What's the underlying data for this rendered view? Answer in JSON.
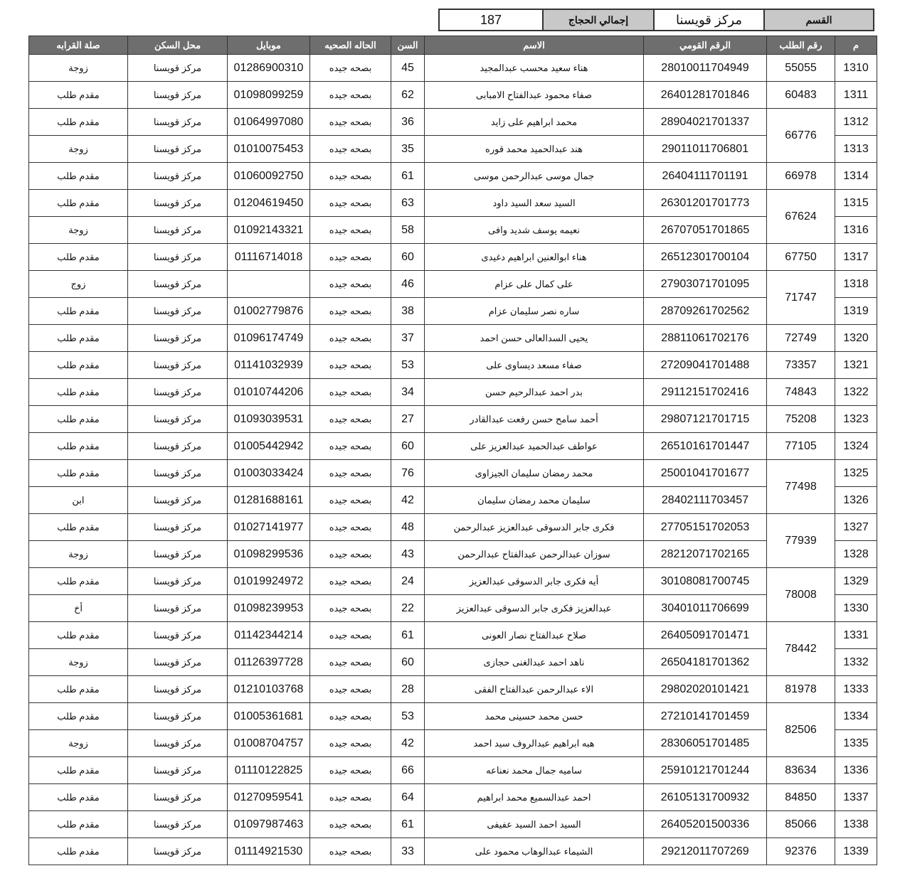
{
  "summary": {
    "section_label": "القسم",
    "section_value": "مركز قويسنا",
    "total_label": "إجمالي الحجاج",
    "total_value": "187"
  },
  "headers": [
    "م",
    "رقم الطلب",
    "الرقم القومي",
    "الاسم",
    "السن",
    "الحاله الصحيه",
    "موبايل",
    "محل السكن",
    "صلة القرابه"
  ],
  "rows": [
    {
      "no": "1310",
      "req": "55055",
      "nid": "28010011704949",
      "name": "هناء سعيد محسب عبدالمجيد",
      "age": "45",
      "health": "بصحه جيده",
      "mobile": "01286900310",
      "residence": "مركز قويسنا",
      "relation": "زوجة"
    },
    {
      "no": "1311",
      "req": "60483",
      "nid": "26401281701846",
      "name": "صفاء محمود عبدالفتاح الامبابى",
      "age": "62",
      "health": "بصحه جيده",
      "mobile": "01098099259",
      "residence": "مركز قويسنا",
      "relation": "مقدم طلب"
    },
    {
      "no": "1312",
      "req": "66776",
      "nid": "28904021701337",
      "name": "محمد ابراهيم على زايد",
      "age": "36",
      "health": "بصحه جيده",
      "mobile": "01064997080",
      "residence": "مركز قويسنا",
      "relation": "مقدم طلب"
    },
    {
      "no": "1313",
      "req": "66776",
      "nid": "29011011706801",
      "name": "هند عبدالحميد محمد قوره",
      "age": "35",
      "health": "بصحه جيده",
      "mobile": "01010075453",
      "residence": "مركز قويسنا",
      "relation": "زوجة"
    },
    {
      "no": "1314",
      "req": "66978",
      "nid": "26404111701191",
      "name": "جمال موسى عبدالرحمن موسى",
      "age": "61",
      "health": "بصحه جيده",
      "mobile": "01060092750",
      "residence": "مركز قويسنا",
      "relation": "مقدم طلب"
    },
    {
      "no": "1315",
      "req": "67624",
      "nid": "26301201701773",
      "name": "السيد سعد السيد داود",
      "age": "63",
      "health": "بصحه جيده",
      "mobile": "01204619450",
      "residence": "مركز قويسنا",
      "relation": "مقدم طلب"
    },
    {
      "no": "1316",
      "req": "67624",
      "nid": "26707051701865",
      "name": "نعيمه يوسف شديد وافى",
      "age": "58",
      "health": "بصحه جيده",
      "mobile": "01092143321",
      "residence": "مركز قويسنا",
      "relation": "زوجة"
    },
    {
      "no": "1317",
      "req": "67750",
      "nid": "26512301700104",
      "name": "هناء ابوالعنين ابراهيم دغيدى",
      "age": "60",
      "health": "بصحه جيده",
      "mobile": "01116714018",
      "residence": "مركز قويسنا",
      "relation": "مقدم طلب"
    },
    {
      "no": "1318",
      "req": "71747",
      "nid": "27903071701095",
      "name": "على كمال على عزام",
      "age": "46",
      "health": "بصحه جيده",
      "mobile": "",
      "residence": "مركز قويسنا",
      "relation": "زوج"
    },
    {
      "no": "1319",
      "req": "71747",
      "nid": "28709261702562",
      "name": "ساره نصر سليمان عزام",
      "age": "38",
      "health": "بصحه جيده",
      "mobile": "01002779876",
      "residence": "مركز قويسنا",
      "relation": "مقدم طلب"
    },
    {
      "no": "1320",
      "req": "72749",
      "nid": "28811061702176",
      "name": "يحيى السدالعالى حسن احمد",
      "age": "37",
      "health": "بصحه جيده",
      "mobile": "01096174749",
      "residence": "مركز قويسنا",
      "relation": "مقدم طلب"
    },
    {
      "no": "1321",
      "req": "73357",
      "nid": "27209041701488",
      "name": "صفاء مسعد ديساوى على",
      "age": "53",
      "health": "بصحه جيده",
      "mobile": "01141032939",
      "residence": "مركز قويسنا",
      "relation": "مقدم طلب"
    },
    {
      "no": "1322",
      "req": "74843",
      "nid": "29112151702416",
      "name": "بدر احمد عبدالرحيم حسن",
      "age": "34",
      "health": "بصحه جيده",
      "mobile": "01010744206",
      "residence": "مركز قويسنا",
      "relation": "مقدم طلب"
    },
    {
      "no": "1323",
      "req": "75208",
      "nid": "29807121701715",
      "name": "أحمد سامح حسن رفعت عبدالقادر",
      "age": "27",
      "health": "بصحه جيده",
      "mobile": "01093039531",
      "residence": "مركز قويسنا",
      "relation": "مقدم طلب"
    },
    {
      "no": "1324",
      "req": "77105",
      "nid": "26510161701447",
      "name": "عواطف عبدالحميد عبدالعزيز على",
      "age": "60",
      "health": "بصحه جيده",
      "mobile": "01005442942",
      "residence": "مركز قويسنا",
      "relation": "مقدم طلب"
    },
    {
      "no": "1325",
      "req": "77498",
      "nid": "25001041701677",
      "name": "محمد رمضان سليمان الجيزاوى",
      "age": "76",
      "health": "بصحه جيده",
      "mobile": "01003033424",
      "residence": "مركز قويسنا",
      "relation": "مقدم طلب"
    },
    {
      "no": "1326",
      "req": "77498",
      "nid": "28402111703457",
      "name": "سليمان محمد رمضان سليمان",
      "age": "42",
      "health": "بصحه جيده",
      "mobile": "01281688161",
      "residence": "مركز قويسنا",
      "relation": "ابن"
    },
    {
      "no": "1327",
      "req": "77939",
      "nid": "27705151702053",
      "name": "فكرى جابر الدسوقى عبدالعزيز عبدالرحمن",
      "age": "48",
      "health": "بصحه جيده",
      "mobile": "01027141977",
      "residence": "مركز قويسنا",
      "relation": "مقدم طلب"
    },
    {
      "no": "1328",
      "req": "77939",
      "nid": "28212071702165",
      "name": "سوزان عبدالرحمن عبدالفتاح عبدالرحمن",
      "age": "43",
      "health": "بصحه جيده",
      "mobile": "01098299536",
      "residence": "مركز قويسنا",
      "relation": "زوجة"
    },
    {
      "no": "1329",
      "req": "78008",
      "nid": "30108081700745",
      "name": "أيه فكرى جابر الدسوقى عبدالعزيز",
      "age": "24",
      "health": "بصحه جيده",
      "mobile": "01019924972",
      "residence": "مركز قويسنا",
      "relation": "مقدم طلب"
    },
    {
      "no": "1330",
      "req": "78008",
      "nid": "30401011706699",
      "name": "عبدالعزيز فكرى جابر الدسوقى عبدالعزيز",
      "age": "22",
      "health": "بصحه جيده",
      "mobile": "01098239953",
      "residence": "مركز قويسنا",
      "relation": "أخ"
    },
    {
      "no": "1331",
      "req": "78442",
      "nid": "26405091701471",
      "name": "صلاح عبدالفتاح نصار العونى",
      "age": "61",
      "health": "بصحه جيده",
      "mobile": "01142344214",
      "residence": "مركز قويسنا",
      "relation": "مقدم طلب"
    },
    {
      "no": "1332",
      "req": "78442",
      "nid": "26504181701362",
      "name": "ناهد احمد عبدالغنى حجازى",
      "age": "60",
      "health": "بصحه جيده",
      "mobile": "01126397728",
      "residence": "مركز قويسنا",
      "relation": "زوجة"
    },
    {
      "no": "1333",
      "req": "81978",
      "nid": "29802020101421",
      "name": "الاء عبدالرحمن عبدالفتاح الفقى",
      "age": "28",
      "health": "بصحه جيده",
      "mobile": "01210103768",
      "residence": "مركز قويسنا",
      "relation": "مقدم طلب"
    },
    {
      "no": "1334",
      "req": "82506",
      "nid": "27210141701459",
      "name": "حسن محمد حسينى محمد",
      "age": "53",
      "health": "بصحه جيده",
      "mobile": "01005361681",
      "residence": "مركز قويسنا",
      "relation": "مقدم طلب"
    },
    {
      "no": "1335",
      "req": "82506",
      "nid": "28306051701485",
      "name": "هبه ابراهيم عبدالروف سيد احمد",
      "age": "42",
      "health": "بصحه جيده",
      "mobile": "01008704757",
      "residence": "مركز قويسنا",
      "relation": "زوجة"
    },
    {
      "no": "1336",
      "req": "83634",
      "nid": "25910121701244",
      "name": "ساميه جمال محمد نعناعه",
      "age": "66",
      "health": "بصحه جيده",
      "mobile": "01110122825",
      "residence": "مركز قويسنا",
      "relation": "مقدم طلب"
    },
    {
      "no": "1337",
      "req": "84850",
      "nid": "26105131700932",
      "name": "احمد عبدالسميع محمد ابراهيم",
      "age": "64",
      "health": "بصحه جيده",
      "mobile": "01270959541",
      "residence": "مركز قويسنا",
      "relation": "مقدم طلب"
    },
    {
      "no": "1338",
      "req": "85066",
      "nid": "26405201500336",
      "name": "السيد احمد السيد عفيفى",
      "age": "61",
      "health": "بصحه جيده",
      "mobile": "01097987463",
      "residence": "مركز قويسنا",
      "relation": "مقدم طلب"
    },
    {
      "no": "1339",
      "req": "92376",
      "nid": "29212011707269",
      "name": "الشيماء عبدالوهاب محمود على",
      "age": "33",
      "health": "بصحه جيده",
      "mobile": "01114921530",
      "residence": "مركز قويسنا",
      "relation": "مقدم طلب"
    }
  ]
}
